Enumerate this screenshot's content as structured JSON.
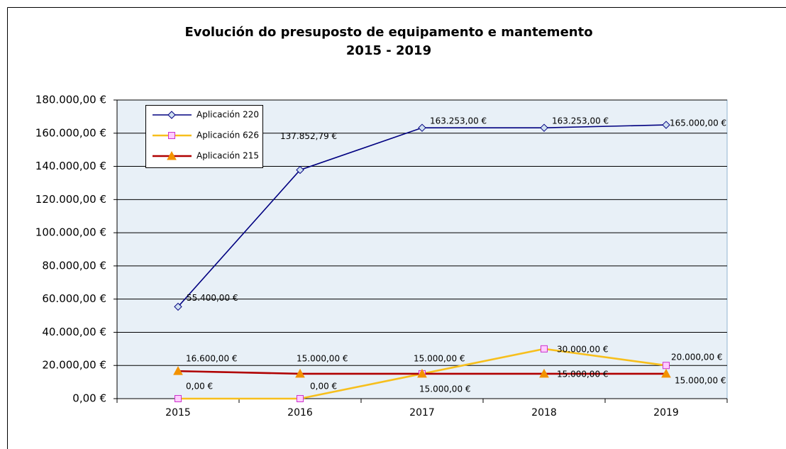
{
  "chart_data": {
    "type": "line",
    "title": [
      "Evolución do presuposto de equipamento e mantemento",
      "2015 - 2019"
    ],
    "categories": [
      "2015",
      "2016",
      "2017",
      "2018",
      "2019"
    ],
    "ylim": [
      0,
      180000
    ],
    "yticks": [
      {
        "value": 0,
        "label": "0,00 €"
      },
      {
        "value": 20000,
        "label": "20.000,00 €"
      },
      {
        "value": 40000,
        "label": "40.000,00 €"
      },
      {
        "value": 60000,
        "label": "60.000,00 €"
      },
      {
        "value": 80000,
        "label": "80.000,00 €"
      },
      {
        "value": 100000,
        "label": "100.000,00 €"
      },
      {
        "value": 120000,
        "label": "120.000,00 €"
      },
      {
        "value": 140000,
        "label": "140.000,00 €"
      },
      {
        "value": 160000,
        "label": "160.000,00 €"
      },
      {
        "value": 180000,
        "label": "180.000,00 €"
      }
    ],
    "grid": true,
    "legend": "upper left",
    "series": [
      {
        "name": "Aplicación 220",
        "color": "#000080",
        "marker": "diamond",
        "marker_color": "#cfe0f0",
        "values": [
          55400,
          137852.79,
          163253,
          163253,
          165000
        ],
        "value_labels": [
          "55.400,00 €",
          "137.852,79 €",
          "163.253,00 €",
          "163.253,00 €",
          "165.000,00 €"
        ]
      },
      {
        "name": "Aplicación 626",
        "color": "#f7bf1c",
        "marker": "square",
        "marker_color": "#ffccff",
        "values": [
          0,
          0,
          15000,
          30000,
          20000
        ],
        "value_labels": [
          "0,00 €",
          "0,00 €",
          "15.000,00 €",
          "30.000,00 €",
          "20.000,00 €"
        ]
      },
      {
        "name": "Aplicación 215",
        "color": "#b00000",
        "marker": "triangle",
        "marker_color": "#f39200",
        "values": [
          16600,
          15000,
          15000,
          15000,
          15000
        ],
        "value_labels": [
          "16.600,00 €",
          "15.000,00 €",
          "15.000,00 €",
          "15.000,00 €",
          "15.000,00 €"
        ]
      }
    ]
  }
}
